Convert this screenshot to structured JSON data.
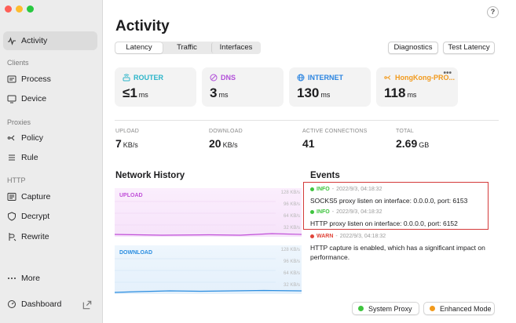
{
  "sidebar": {
    "items": [
      {
        "id": "activity",
        "label": "Activity",
        "icon": "activity-icon"
      },
      {
        "id": "process",
        "label": "Process",
        "icon": "process-icon"
      },
      {
        "id": "device",
        "label": "Device",
        "icon": "device-icon"
      },
      {
        "id": "policy",
        "label": "Policy",
        "icon": "policy-icon"
      },
      {
        "id": "rule",
        "label": "Rule",
        "icon": "rule-icon"
      },
      {
        "id": "capture",
        "label": "Capture",
        "icon": "capture-icon"
      },
      {
        "id": "decrypt",
        "label": "Decrypt",
        "icon": "decrypt-icon"
      },
      {
        "id": "rewrite",
        "label": "Rewrite",
        "icon": "rewrite-icon"
      },
      {
        "id": "more",
        "label": "More",
        "icon": "more-icon"
      },
      {
        "id": "dashboard",
        "label": "Dashboard",
        "icon": "dashboard-icon"
      }
    ],
    "sections": {
      "clients": "Clients",
      "proxies": "Proxies",
      "http": "HTTP"
    }
  },
  "header": {
    "title": "Activity",
    "help": "?",
    "tabs": [
      "Latency",
      "Traffic",
      "Interfaces"
    ],
    "active_tab": "Latency",
    "diagnostics": "Diagnostics",
    "test_latency": "Test Latency"
  },
  "cards": [
    {
      "label": "ROUTER",
      "value": "≤1",
      "unit": "ms",
      "color": "#2bb5c9"
    },
    {
      "label": "DNS",
      "value": "3",
      "unit": "ms",
      "color": "#b24fd9"
    },
    {
      "label": "INTERNET",
      "value": "130",
      "unit": "ms",
      "color": "#2a84e0"
    },
    {
      "label": "HongKong-PRO...",
      "value": "118",
      "unit": "ms",
      "color": "#f29a1c",
      "more": "•••"
    }
  ],
  "stats": [
    {
      "label": "UPLOAD",
      "value": "7",
      "unit": "KB/s"
    },
    {
      "label": "DOWNLOAD",
      "value": "20",
      "unit": "KB/s"
    },
    {
      "label": "ACTIVE CONNECTIONS",
      "value": "41",
      "unit": ""
    },
    {
      "label": "TOTAL",
      "value": "2.69",
      "unit": "GB"
    }
  ],
  "network_history": {
    "title": "Network History",
    "upload": {
      "label": "UPLOAD",
      "color": "#c04fd8",
      "ticks": [
        "128 KB/s",
        "96 KB/s",
        "64 KB/s",
        "32 KB/s"
      ]
    },
    "download": {
      "label": "DOWNLOAD",
      "color": "#2a8de0",
      "ticks": [
        "128 KB/s",
        "96 KB/s",
        "64 KB/s",
        "32 KB/s"
      ]
    }
  },
  "events": {
    "title": "Events",
    "items": [
      {
        "level": "INFO",
        "time": "2022/9/3, 04:18:32",
        "message": "SOCKS5 proxy listen on interface: 0.0.0.0, port: 6153",
        "color": "#3ec43e"
      },
      {
        "level": "INFO",
        "time": "2022/9/3, 04:18:32",
        "message": "HTTP proxy listen on interface: 0.0.0.0, port: 6152",
        "color": "#3ec43e"
      },
      {
        "level": "WARN",
        "time": "2022/9/3, 04:18:32",
        "message": "HTTP capture is enabled, which has a significant impact on performance.",
        "color": "#e0453a"
      }
    ]
  },
  "footer": {
    "system_proxy": {
      "label": "System Proxy",
      "color": "#3ec43e"
    },
    "enhanced_mode": {
      "label": "Enhanced Mode",
      "color": "#f29a1c"
    }
  }
}
